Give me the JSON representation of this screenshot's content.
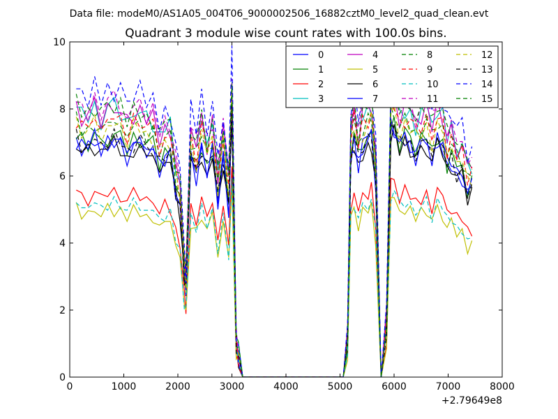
{
  "header": {
    "data_file": "Data file: modeM0/AS1A05_004T06_9000002506_16882cztM0_level2_quad_clean.evt"
  },
  "chart_data": {
    "type": "line",
    "title": "Quadrant 3 module wise count rates with 100.0s bins.",
    "xlabel": "",
    "ylabel": "",
    "x_offset_label": "+2.79649e8",
    "xlim": [
      0,
      8000
    ],
    "ylim": [
      0,
      10
    ],
    "xticks": [
      0,
      1000,
      2000,
      3000,
      4000,
      5000,
      6000,
      7000,
      8000
    ],
    "yticks": [
      0,
      2,
      4,
      6,
      8,
      10
    ],
    "grid": false,
    "legend_position": "top-right",
    "legend_columns": 4,
    "keypoints": {
      "x": [
        120,
        220,
        340,
        460,
        580,
        700,
        820,
        940,
        1060,
        1180,
        1300,
        1420,
        1540,
        1660,
        1760,
        1860,
        1960,
        2040,
        2120,
        2150,
        2240,
        2340,
        2440,
        2540,
        2640,
        2740,
        2840,
        2940,
        3000,
        3080,
        3120,
        3200,
        5060,
        5140,
        5200,
        5260,
        5340,
        5420,
        5520,
        5580,
        5660,
        5760,
        5860,
        5940,
        6000,
        6100,
        6200,
        6300,
        6400,
        6500,
        6600,
        6700,
        6800,
        6900,
        6980,
        7060,
        7160,
        7260,
        7360,
        7440
      ],
      "base": [
        7.0,
        6.8,
        6.8,
        7.0,
        6.7,
        7.0,
        7.0,
        6.9,
        6.6,
        6.9,
        6.9,
        6.7,
        6.7,
        6.2,
        6.5,
        6.5,
        5.5,
        5.0,
        3.0,
        2.6,
        6.5,
        6.0,
        6.7,
        6.1,
        6.6,
        5.2,
        6.5,
        5.0,
        7.8,
        1.0,
        0.6,
        0.0,
        0.0,
        1.0,
        6.5,
        7.0,
        6.3,
        6.8,
        7.0,
        7.1,
        5.7,
        0.0,
        1.5,
        7.3,
        7.4,
        6.8,
        7.0,
        6.9,
        6.6,
        6.8,
        7.0,
        6.5,
        7.0,
        6.8,
        6.2,
        6.4,
        6.0,
        6.0,
        5.4,
        5.6
      ],
      "levels": [
        6.8,
        6.9,
        6.9,
        6.9,
        6.8,
        6.8,
        6.9,
        6.8,
        7.0,
        6.7,
        7.0,
        6.9,
        6.8,
        6.5,
        6.8,
        7.9,
        5.2,
        6.2,
        8.2,
        7.2,
        8.3,
        7.9,
        7.5,
        7.4,
        6.8,
        5.3,
        5.4,
        5.3,
        5.4,
        6.5,
        5.5,
        8.7,
        8.7,
        5.1,
        7.4,
        5.2,
        5.2,
        5.1,
        6.9,
        6.4,
        7.8,
        8.7,
        5.9,
        6.4,
        6.3,
        7.6,
        7.3
      ],
      "jitter": [
        0.15,
        -0.2,
        0.25,
        -0.1,
        0.3,
        -0.25,
        0.1,
        0.2,
        -0.3,
        0.05,
        0.25,
        -0.15,
        0.2,
        -0.25,
        0.1,
        0.3,
        -0.2,
        0.15,
        -0.1,
        0.0,
        0.25,
        -0.3,
        0.2,
        -0.1,
        0.3,
        -0.2,
        0.1,
        -0.25,
        0.15,
        0.0,
        0.0,
        0.0,
        0.0,
        0.0,
        0.2,
        -0.3,
        0.25,
        -0.15,
        0.1,
        0.3,
        -0.2,
        0.0,
        0.0,
        0.2,
        -0.25,
        0.3,
        -0.1,
        0.15,
        -0.3,
        0.25,
        0.1,
        -0.2,
        0.3,
        -0.15,
        0.2,
        -0.25,
        0.1,
        -0.3,
        0.2,
        0.1
      ]
    },
    "series": [
      {
        "name": "0",
        "color": "#0000ff",
        "dash": "solid",
        "level": 7.0
      },
      {
        "name": "1",
        "color": "#008000",
        "dash": "solid",
        "level": 7.2
      },
      {
        "name": "2",
        "color": "#ff0000",
        "dash": "solid",
        "level": 5.5
      },
      {
        "name": "3",
        "color": "#00bfbf",
        "dash": "solid",
        "level": 8.0
      },
      {
        "name": "4",
        "color": "#bf00bf",
        "dash": "solid",
        "level": 8.0
      },
      {
        "name": "5",
        "color": "#bfbf00",
        "dash": "solid",
        "level": 5.0
      },
      {
        "name": "6",
        "color": "#000000",
        "dash": "solid",
        "level": 6.9
      },
      {
        "name": "7",
        "color": "#0000ff",
        "dash": "solid",
        "level": 7.1
      },
      {
        "name": "8",
        "color": "#008000",
        "dash": "dashed",
        "level": 7.6
      },
      {
        "name": "9",
        "color": "#ff0000",
        "dash": "dashed",
        "level": 7.7
      },
      {
        "name": "10",
        "color": "#00bfbf",
        "dash": "dashed",
        "level": 5.2
      },
      {
        "name": "11",
        "color": "#bf00bf",
        "dash": "dashed",
        "level": 8.2
      },
      {
        "name": "12",
        "color": "#bfbf00",
        "dash": "dashed",
        "level": 7.5
      },
      {
        "name": "13",
        "color": "#000000",
        "dash": "dashed",
        "level": 7.1
      },
      {
        "name": "14",
        "color": "#0000ff",
        "dash": "dashed",
        "level": 8.6
      },
      {
        "name": "15",
        "color": "#008000",
        "dash": "dashed",
        "level": 8.1
      }
    ]
  }
}
